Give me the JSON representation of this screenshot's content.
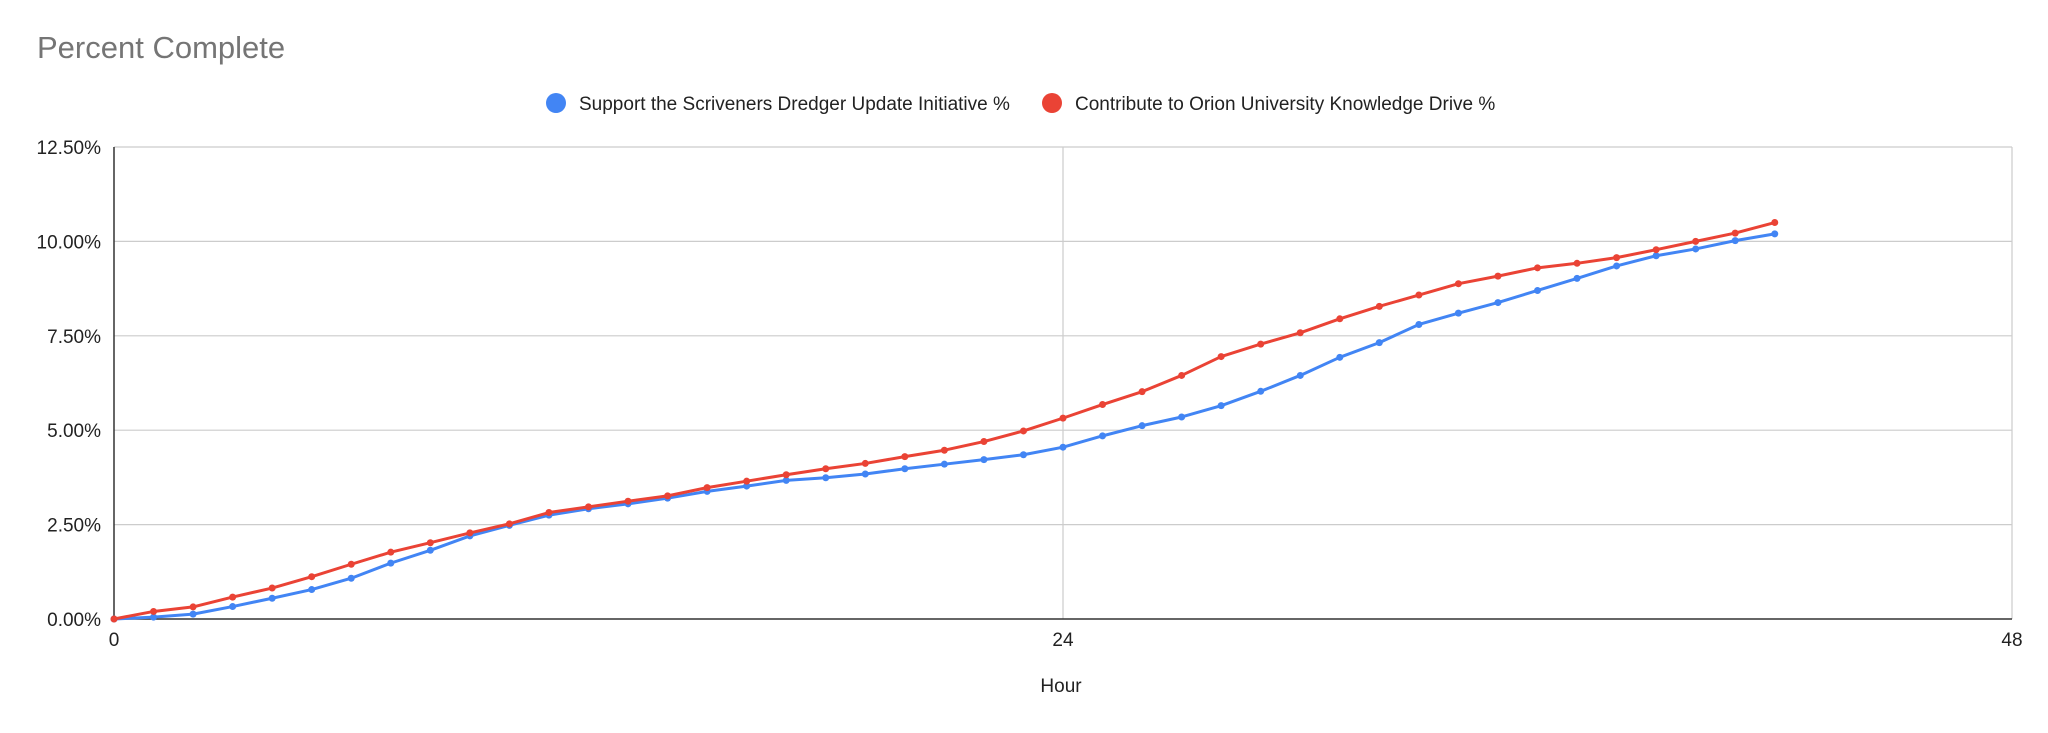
{
  "chart_data": {
    "type": "line",
    "title": "Percent Complete",
    "xlabel": "Hour",
    "ylabel": "",
    "xlim": [
      0,
      48
    ],
    "ylim": [
      0,
      12.5
    ],
    "x_ticks": [
      0,
      24,
      48
    ],
    "y_ticks": [
      "0.00%",
      "2.50%",
      "5.00%",
      "7.50%",
      "10.00%",
      "12.50%"
    ],
    "y_tick_values": [
      0,
      2.5,
      5,
      7.5,
      10,
      12.5
    ],
    "grid": true,
    "legend_position": "top",
    "x": [
      0,
      1,
      2,
      3,
      4,
      5,
      6,
      7,
      8,
      9,
      10,
      11,
      12,
      13,
      14,
      15,
      16,
      17,
      18,
      19,
      20,
      21,
      22,
      23,
      24,
      25,
      26,
      27,
      28,
      29,
      30,
      31,
      32,
      33,
      34,
      35,
      36,
      37,
      38,
      39,
      40,
      41,
      42
    ],
    "series": [
      {
        "name": "Support the Scriveners Dredger Update Initiative %",
        "color": "#4285f4",
        "values": [
          0.0,
          0.05,
          0.13,
          0.33,
          0.55,
          0.78,
          1.08,
          1.48,
          1.82,
          2.2,
          2.48,
          2.75,
          2.92,
          3.05,
          3.2,
          3.38,
          3.52,
          3.67,
          3.74,
          3.84,
          3.98,
          4.1,
          4.22,
          4.35,
          4.55,
          4.85,
          5.12,
          5.35,
          5.65,
          6.03,
          6.45,
          6.93,
          7.32,
          7.8,
          8.1,
          8.38,
          8.7,
          9.02,
          9.35,
          9.62,
          9.8,
          10.02,
          10.2
        ]
      },
      {
        "name": "Contribute to Orion University Knowledge Drive %",
        "color": "#ea4335",
        "values": [
          0.0,
          0.2,
          0.32,
          0.58,
          0.82,
          1.12,
          1.45,
          1.77,
          2.02,
          2.28,
          2.52,
          2.82,
          2.97,
          3.12,
          3.26,
          3.48,
          3.65,
          3.82,
          3.98,
          4.12,
          4.3,
          4.47,
          4.7,
          4.98,
          5.32,
          5.68,
          6.02,
          6.45,
          6.95,
          7.28,
          7.58,
          7.95,
          8.28,
          8.58,
          8.88,
          9.08,
          9.3,
          9.42,
          9.57,
          9.78,
          10.0,
          10.22,
          10.5
        ]
      }
    ]
  }
}
